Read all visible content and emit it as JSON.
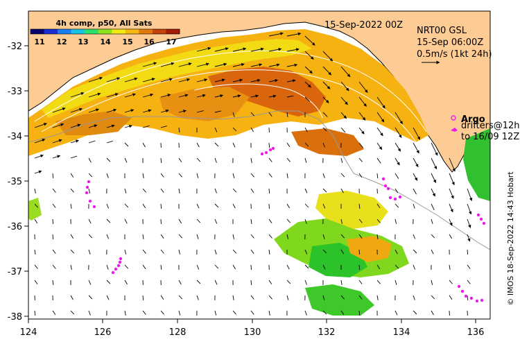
{
  "legend": {
    "title": "4h comp, p50, All Sats",
    "ticks": [
      "11",
      "12",
      "13",
      "14",
      "15",
      "16",
      "17"
    ],
    "colors": [
      "#08006e",
      "#1b2dd2",
      "#1a7df0",
      "#18c4e6",
      "#2ce06b",
      "#8fe21e",
      "#f0e915",
      "#f7b70e",
      "#e07a0c",
      "#c2420a",
      "#a31a07"
    ]
  },
  "header": {
    "date": "15-Sep-2022 00Z",
    "nrt_line1": "NRT00 GSL",
    "nrt_line2": "15-Sep 06:00Z",
    "nrt_line3": "0.5m/s (1kt 24h)"
  },
  "argo": {
    "label": "Argo",
    "drifters_line1": "drifters@12h",
    "drifters_line2": "to 16/09 12Z"
  },
  "credit": "© IMOS 18-Sep-2022 14:43 Hobart",
  "axes": {
    "x_ticks": [
      "124",
      "126",
      "128",
      "130",
      "132",
      "134",
      "136"
    ],
    "y_ticks": [
      "-32",
      "-33",
      "-34",
      "-35",
      "-36",
      "-37",
      "-38"
    ]
  },
  "colors": {
    "land": "#fdcb94",
    "ocean": "#ffffff",
    "argo": "#e81ee8"
  }
}
